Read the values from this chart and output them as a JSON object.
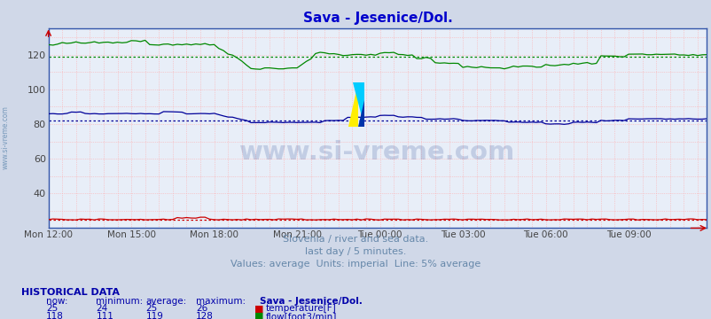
{
  "title": "Sava - Jesenice/Dol.",
  "title_color": "#0000cc",
  "bg_color": "#d0d8e8",
  "plot_bg_color": "#e8eef8",
  "subtitle_lines": [
    "Slovenia / river and sea data.",
    "last day / 5 minutes.",
    "Values: average  Units: imperial  Line: 5% average"
  ],
  "subtitle_color": "#6688aa",
  "watermark": "www.si-vreme.com",
  "watermark_color": "#1a3a8a",
  "watermark_alpha": 0.18,
  "xtick_labels": [
    "Mon 12:00",
    "Mon 15:00",
    "Mon 18:00",
    "Mon 21:00",
    "Tue 00:00",
    "Tue 03:00",
    "Tue 06:00",
    "Tue 09:00"
  ],
  "xtick_positions": [
    0,
    18,
    36,
    54,
    72,
    90,
    108,
    126
  ],
  "ylim": [
    20,
    135
  ],
  "yticks": [
    40,
    60,
    80,
    100,
    120
  ],
  "n_points": 144,
  "temp_color": "#cc0000",
  "temp_avg_value": 25,
  "temp_now": 25,
  "temp_min": 24,
  "temp_max": 26,
  "flow_color": "#008800",
  "flow_avg_value": 119,
  "flow_now": 118,
  "flow_min": 111,
  "flow_max": 128,
  "height_color": "#000099",
  "height_avg_value": 82,
  "height_now": 82,
  "height_min": 79,
  "height_max": 86,
  "left_label": "www.si-vreme.com",
  "left_label_color": "#7799bb",
  "table_title": "HISTORICAL DATA",
  "table_color": "#0000aa",
  "axis_color": "#3355aa",
  "spine_color": "#3355aa"
}
